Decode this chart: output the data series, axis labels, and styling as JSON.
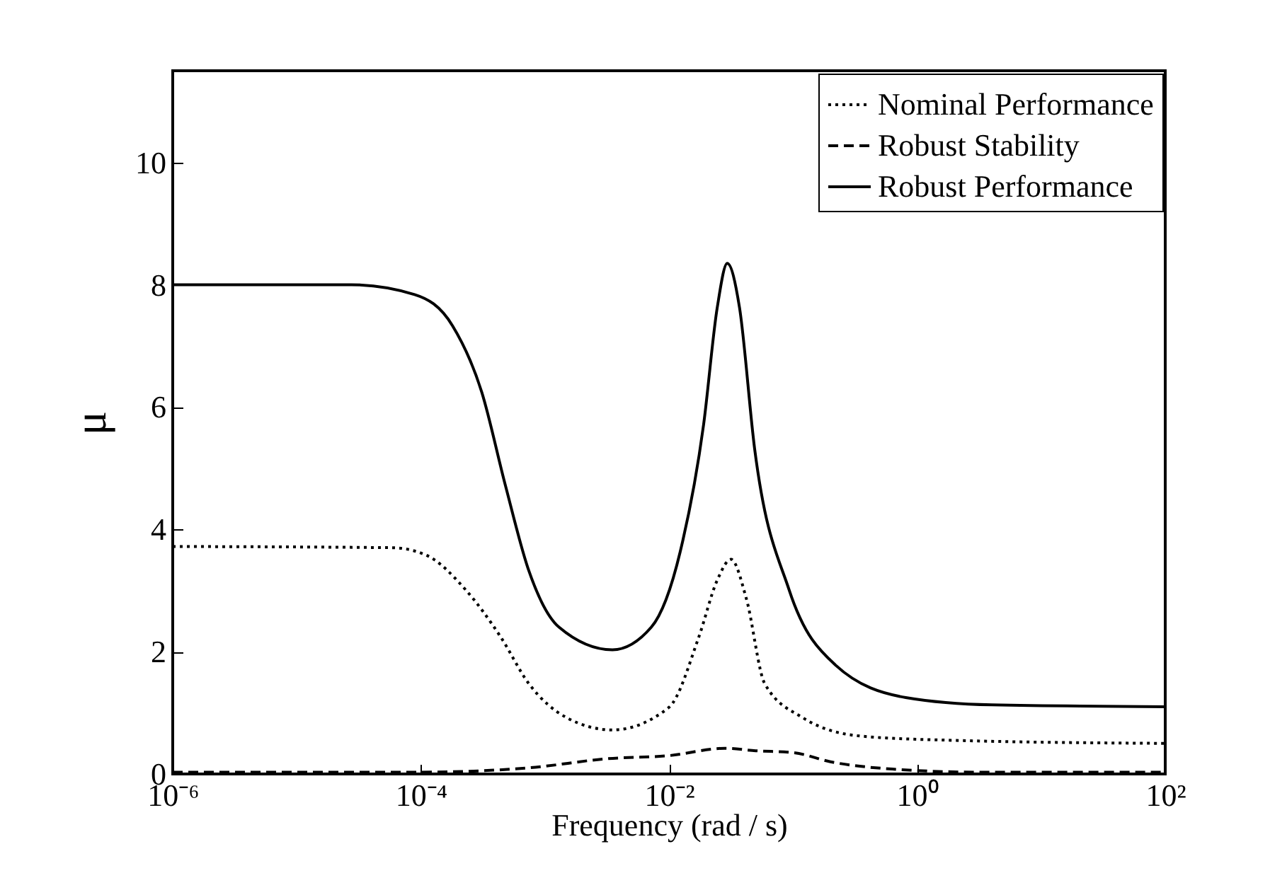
{
  "chart_data": {
    "type": "line",
    "xlabel": "Frequency (rad / s)",
    "ylabel": "μ",
    "log": "x",
    "legend": "top right",
    "xlim": [
      1e-06,
      100
    ],
    "ylim": [
      0,
      11.5
    ],
    "xticks": [
      {
        "value": 1e-06,
        "label": "10⁻⁶"
      },
      {
        "value": 0.0001,
        "label": "10⁻⁴"
      },
      {
        "value": 0.01,
        "label": "10⁻²"
      },
      {
        "value": 1,
        "label": "10⁰"
      },
      {
        "value": 100,
        "label": "10²"
      }
    ],
    "yticks": [
      0,
      2,
      4,
      6,
      8,
      10
    ],
    "series": [
      {
        "name": "Nominal Performance",
        "color": "#000000",
        "line_style": "dotted",
        "x": [
          1e-06,
          5.9e-05,
          0.00011,
          0.00023,
          0.00044,
          0.00074,
          0.0015,
          0.0035,
          0.01,
          0.0174,
          0.0245,
          0.0316,
          0.042,
          0.059,
          0.12,
          0.35,
          1.95,
          100
        ],
        "values": [
          3.72,
          3.7,
          3.58,
          3.01,
          2.24,
          1.48,
          0.92,
          0.72,
          1.09,
          2.24,
          3.17,
          3.51,
          2.87,
          1.48,
          0.92,
          0.62,
          0.55,
          0.5
        ]
      },
      {
        "name": "Robust Stability",
        "color": "#000000",
        "line_style": "dashed",
        "x": [
          1e-06,
          0.0001,
          0.00074,
          0.0032,
          0.01,
          0.028,
          0.05,
          0.1,
          0.2,
          0.63,
          3.2,
          100
        ],
        "values": [
          0.03,
          0.03,
          0.1,
          0.25,
          0.3,
          0.42,
          0.38,
          0.35,
          0.2,
          0.08,
          0.03,
          0.03
        ]
      },
      {
        "name": "Robust Performance",
        "color": "#000000",
        "line_style": "solid",
        "x": [
          1e-06,
          2.75e-05,
          8.9e-05,
          0.00018,
          0.00031,
          0.00048,
          0.00074,
          0.0013,
          0.0035,
          0.0072,
          0.0123,
          0.019,
          0.0245,
          0.0295,
          0.037,
          0.049,
          0.093,
          0.22,
          0.81,
          4,
          100
        ],
        "values": [
          8,
          8,
          7.84,
          7.33,
          6.24,
          4.72,
          3.33,
          2.4,
          2.03,
          2.4,
          3.63,
          5.71,
          7.63,
          8.35,
          7.63,
          5.32,
          3.01,
          1.78,
          1.25,
          1.13,
          1.1
        ]
      }
    ]
  }
}
